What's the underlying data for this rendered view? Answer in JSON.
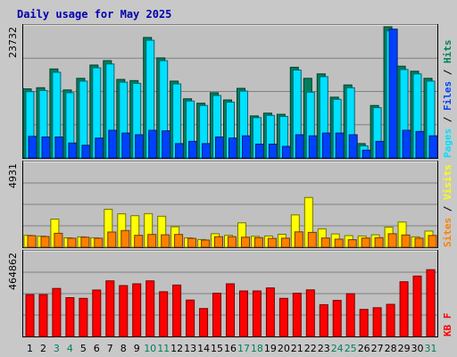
{
  "chart_data": {
    "type": "bar",
    "title": "Daily usage for May 2025",
    "days": [
      "1",
      "2",
      "3",
      "4",
      "5",
      "6",
      "7",
      "8",
      "9",
      "10",
      "11",
      "12",
      "13",
      "14",
      "15",
      "16",
      "17",
      "18",
      "19",
      "20",
      "21",
      "22",
      "23",
      "24",
      "25",
      "26",
      "27",
      "28",
      "29",
      "30",
      "31"
    ],
    "weekend_days": [
      "3",
      "4",
      "10",
      "11",
      "17",
      "18",
      "24",
      "25",
      "31"
    ],
    "colors": {
      "hits": "#00805c",
      "files": "#00e0ff",
      "pages": "#0040ff",
      "visits": "#ffff00",
      "sites": "#ff8000",
      "kbytes": "#ff0000",
      "weekday_label": "#000000",
      "weekend_label": "#00805c",
      "plot_bg": "#c0c0c0",
      "grid": "#808080"
    },
    "panels": [
      {
        "id": "hits-files-pages",
        "ymax_label": "23732",
        "ymax": 23732,
        "legend": [
          {
            "key": "pages",
            "label": "Pages",
            "color": "#00e0ff"
          },
          {
            "key": "files",
            "label": "Files",
            "color": "#0040ff"
          },
          {
            "key": "hits",
            "label": "Hits",
            "color": "#00805c"
          }
        ],
        "series": [
          {
            "key": "hits",
            "values": [
              12500,
              12700,
              16100,
              12300,
              14400,
              16800,
              17600,
              14200,
              14000,
              21800,
              18100,
              13900,
              10700,
              9900,
              11800,
              10500,
              12600,
              7600,
              8100,
              7900,
              16400,
              14400,
              15200,
              11000,
              13200,
              2600,
              9500,
              23732,
              16600,
              15700,
              14400
            ]
          },
          {
            "key": "files",
            "values": [
              12000,
              12200,
              15500,
              11800,
              13900,
              16300,
              17000,
              13700,
              13500,
              21300,
              17600,
              13400,
              10300,
              9500,
              11300,
              10100,
              12100,
              7300,
              7700,
              7500,
              15900,
              11900,
              14700,
              10600,
              12700,
              2200,
              9100,
              23000,
              16000,
              15200,
              13900
            ]
          },
          {
            "key": "pages",
            "values": [
              3900,
              3800,
              3800,
              2700,
              2300,
              3600,
              5000,
              4500,
              4200,
              5000,
              4900,
              2600,
              3000,
              2600,
              3800,
              3600,
              4000,
              2500,
              2500,
              2100,
              4200,
              4000,
              4500,
              4500,
              4200,
              1400,
              3000,
              23300,
              5000,
              4800,
              4000
            ]
          }
        ]
      },
      {
        "id": "visits-sites",
        "ymax_label": "4931",
        "ymax": 4931,
        "legend": [
          {
            "key": "sites",
            "label": "Sites",
            "color": "#ff8000"
          },
          {
            "key": "visits",
            "label": "Visits",
            "color": "#ffff00"
          }
        ],
        "series": [
          {
            "key": "visits",
            "values": [
              700,
              650,
              1650,
              550,
              610,
              550,
              2230,
              1960,
              1850,
              1970,
              1820,
              1200,
              550,
              450,
              790,
              700,
              1430,
              640,
              660,
              760,
              1900,
              2920,
              1080,
              780,
              680,
              660,
              730,
              1180,
              1480,
              610,
              950
            ]
          },
          {
            "key": "sites",
            "values": [
              680,
              630,
              820,
              530,
              590,
              530,
              890,
              980,
              700,
              750,
              730,
              750,
              520,
              420,
              620,
              620,
              590,
              560,
              520,
              530,
              900,
              870,
              540,
              470,
              440,
              540,
              560,
              790,
              720,
              530,
              690
            ]
          }
        ]
      },
      {
        "id": "kbytes",
        "ymax_label": "464862",
        "ymax": 464862,
        "legend": [
          {
            "key": "kbytes",
            "label": "KB F",
            "color": "#ff0000"
          }
        ],
        "series": [
          {
            "key": "kbytes",
            "values": [
              232000,
              232000,
              266000,
              215000,
              211000,
              257000,
              308000,
              282000,
              292000,
              308000,
              248000,
              285000,
              202000,
              155000,
              240000,
              292000,
              252000,
              252000,
              269000,
              211000,
              240000,
              258000,
              176000,
              200000,
              237000,
              150000,
              159000,
              178000,
              303000,
              335000,
              370000
            ]
          }
        ]
      }
    ]
  }
}
